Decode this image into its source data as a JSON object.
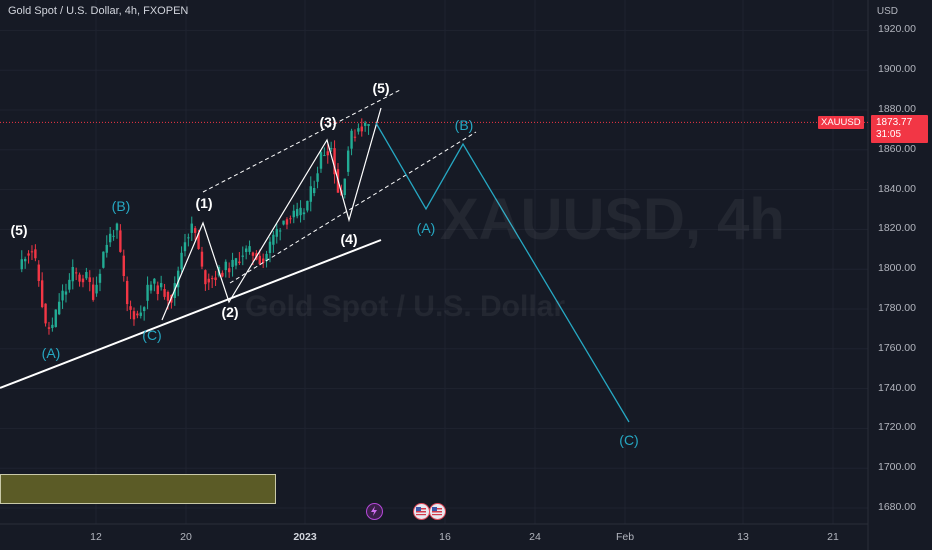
{
  "header": {
    "title": "Gold Spot / U.S. Dollar, 4h, FXOPEN",
    "currency": "USD"
  },
  "watermark": {
    "symbol": "XAUUSD, 4h",
    "name": "Gold Spot / U.S. Dollar"
  },
  "price_label": {
    "symbol": "XAUUSD",
    "price": "1873.77",
    "countdown": "31:05"
  },
  "colors": {
    "background": "#161a25",
    "up": "#22ab94",
    "down": "#f23645",
    "wave_primary": "#ffffff",
    "wave_correction": "#26a8c3",
    "zone": "#5b5b26"
  },
  "events": {
    "icons": [
      "lightning-icon",
      "us-flag-icon",
      "us-flag-icon"
    ]
  },
  "chart_data": {
    "type": "candlestick",
    "title": "Gold Spot / U.S. Dollar, 4h, FXOPEN",
    "ylabel": "USD",
    "ylim": [
      1670,
      1930
    ],
    "y_ticks": [
      "1920.00",
      "1900.00",
      "1880.00",
      "1860.00",
      "1840.00",
      "1820.00",
      "1800.00",
      "1780.00",
      "1760.00",
      "1740.00",
      "1720.00",
      "1700.00",
      "1680.00"
    ],
    "x_ticks": [
      "12",
      "20",
      "2023",
      "16",
      "24",
      "Feb",
      "13",
      "21"
    ],
    "current_price": 1873.77,
    "price_path": [
      {
        "t": "12-01",
        "p": 1800
      },
      {
        "t": "12-02",
        "p": 1808
      },
      {
        "t": "12-03",
        "p": 1810
      },
      {
        "t": "12-04",
        "p": 1794
      },
      {
        "t": "12-05",
        "p": 1770
      },
      {
        "t": "12-06",
        "p": 1771
      },
      {
        "t": "12-07",
        "p": 1785
      },
      {
        "t": "12-08",
        "p": 1790
      },
      {
        "t": "12-09",
        "p": 1799
      },
      {
        "t": "12-10",
        "p": 1795
      },
      {
        "t": "12-11",
        "p": 1796
      },
      {
        "t": "12-12",
        "p": 1787
      },
      {
        "t": "12-13",
        "p": 1812
      },
      {
        "t": "12-14",
        "p": 1822
      },
      {
        "t": "12-15",
        "p": 1780
      },
      {
        "t": "12-16",
        "p": 1776
      },
      {
        "t": "12-17",
        "p": 1793
      },
      {
        "t": "12-18",
        "p": 1790
      },
      {
        "t": "12-19",
        "p": 1785
      },
      {
        "t": "12-20",
        "p": 1815
      },
      {
        "t": "12-21",
        "p": 1822
      },
      {
        "t": "12-22",
        "p": 1795
      },
      {
        "t": "12-23",
        "p": 1796
      },
      {
        "t": "12-24",
        "p": 1800
      },
      {
        "t": "12-25",
        "p": 1802
      },
      {
        "t": "12-26",
        "p": 1809
      },
      {
        "t": "12-27",
        "p": 1808
      },
      {
        "t": "12-28",
        "p": 1804
      },
      {
        "t": "12-29",
        "p": 1816
      },
      {
        "t": "12-30",
        "p": 1825
      },
      {
        "t": "01-01",
        "p": 1828
      },
      {
        "t": "01-02",
        "p": 1840
      },
      {
        "t": "01-03",
        "p": 1858
      },
      {
        "t": "01-04",
        "p": 1862
      },
      {
        "t": "01-05",
        "p": 1833
      },
      {
        "t": "01-06",
        "p": 1865
      },
      {
        "t": "01-07",
        "p": 1872
      },
      {
        "t": "01-08",
        "p": 1872
      }
    ],
    "wave_labels": [
      {
        "label": "(5)",
        "group": "primary",
        "t": "12-01",
        "p": 1815
      },
      {
        "label": "(B)",
        "group": "correction",
        "t": "12-13",
        "p": 1826
      },
      {
        "label": "(A)",
        "group": "correction",
        "t": "12-05",
        "p": 1762
      },
      {
        "label": "(C)",
        "group": "correction",
        "t": "12-16",
        "p": 1773
      },
      {
        "label": "(1)",
        "group": "primary",
        "t": "12-21",
        "p": 1826
      },
      {
        "label": "(2)",
        "group": "primary",
        "t": "12-22",
        "p": 1785
      },
      {
        "label": "(3)",
        "group": "primary",
        "t": "01-04",
        "p": 1866
      },
      {
        "label": "(4)",
        "group": "primary",
        "t": "01-06",
        "p": 1824
      },
      {
        "label": "(5)",
        "group": "primary",
        "t": "01-08",
        "p": 1882
      },
      {
        "label": "(A)",
        "group": "correction",
        "t": "01-13",
        "p": 1830
      },
      {
        "label": "(B)",
        "group": "correction",
        "t": "01-18",
        "p": 1865
      },
      {
        "label": "(C)",
        "group": "correction",
        "t": "02-01",
        "p": 1722
      }
    ]
  }
}
